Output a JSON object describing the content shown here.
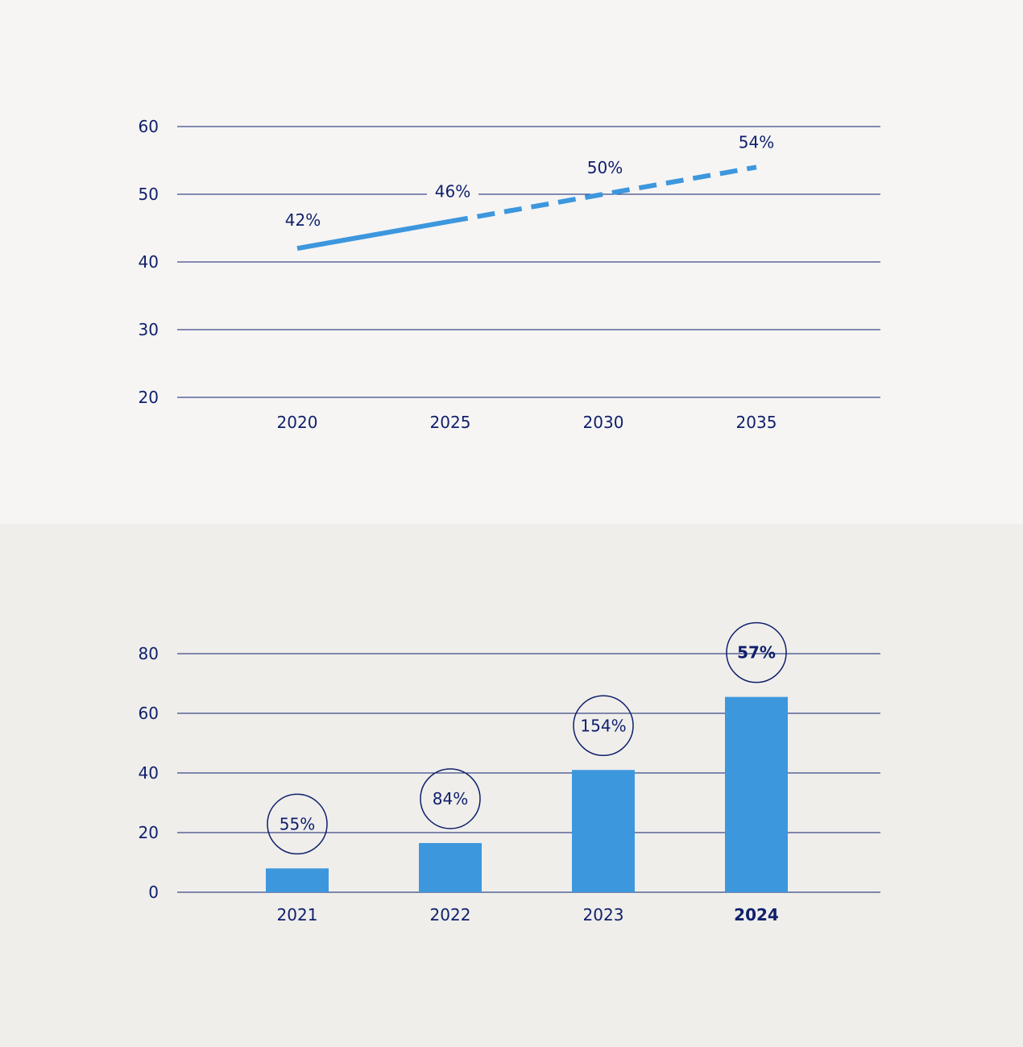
{
  "colors": {
    "accent": "#3d97dd",
    "ink": "#0f1f6b"
  },
  "chart_data": [
    {
      "type": "line",
      "x": [
        "2020",
        "2025",
        "2030",
        "2035"
      ],
      "series": [
        {
          "values": [
            42,
            46,
            50,
            54
          ],
          "labels": [
            "42%",
            "46%",
            "50%",
            "54%"
          ],
          "style": "solid until 2025, dashed after"
        }
      ],
      "yticks": [
        "20",
        "30",
        "40",
        "50",
        "60"
      ],
      "ylim": [
        20,
        60
      ],
      "grid": true,
      "title": "",
      "xlabel": "",
      "ylabel": ""
    },
    {
      "type": "bar",
      "categories": [
        "2021",
        "2022",
        "2023",
        "2024"
      ],
      "values": [
        8,
        16.5,
        41,
        65.5
      ],
      "labels": [
        "55%",
        "84%",
        "154%",
        "57%"
      ],
      "highlighted": "2024",
      "yticks": [
        "0",
        "20",
        "40",
        "60",
        "80"
      ],
      "ylim": [
        0,
        80
      ],
      "grid": true,
      "title": "",
      "xlabel": "",
      "ylabel": ""
    }
  ]
}
